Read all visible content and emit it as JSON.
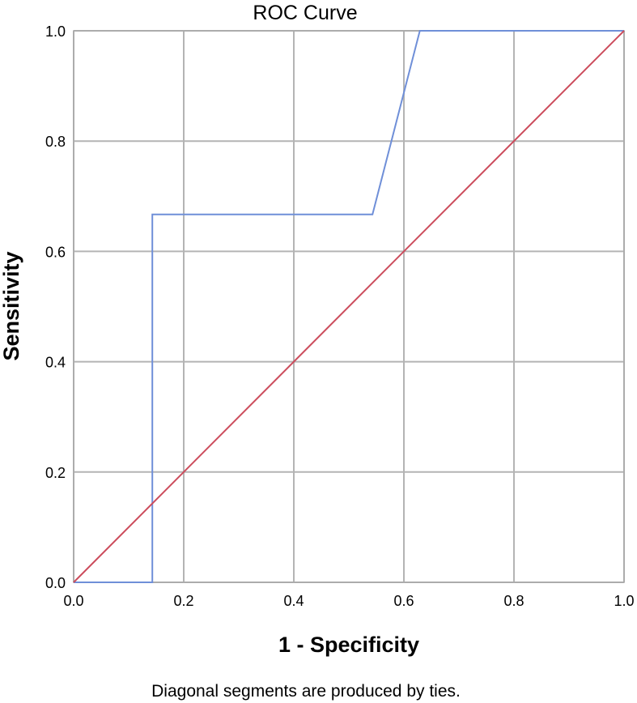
{
  "chart_data": {
    "type": "line",
    "title": "ROC Curve",
    "xlabel": "1 - Specificity",
    "ylabel": "Sensitivity",
    "xlim": [
      0,
      1
    ],
    "ylim": [
      0,
      1
    ],
    "x_ticks": [
      "0.0",
      "0.2",
      "0.4",
      "0.6",
      "0.8",
      "1.0"
    ],
    "y_ticks": [
      "0.0",
      "0.2",
      "0.4",
      "0.6",
      "0.8",
      "1.0"
    ],
    "grid": true,
    "footnote": "Diagonal segments are produced by ties.",
    "series": [
      {
        "color": "#6f8fd8",
        "x": [
          0.0,
          0.143,
          0.143,
          0.543,
          0.629,
          1.0
        ],
        "y": [
          0.0,
          0.0,
          0.667,
          0.667,
          1.0,
          1.0
        ]
      },
      {
        "color": "#cc4c5c",
        "x": [
          0.0,
          1.0
        ],
        "y": [
          0.0,
          1.0
        ]
      }
    ]
  }
}
